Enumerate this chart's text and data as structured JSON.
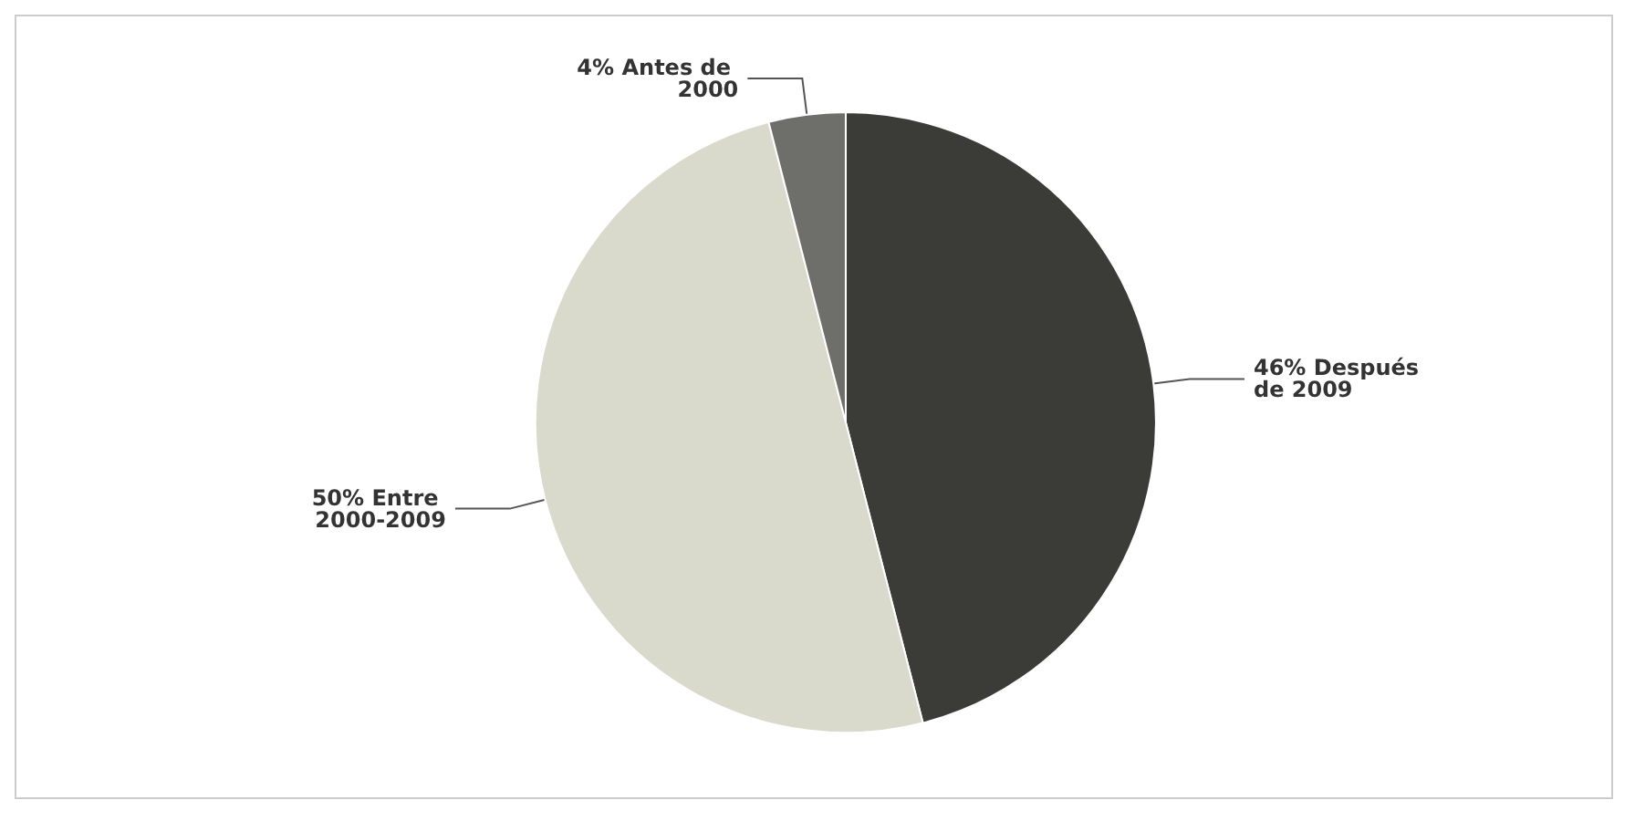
{
  "chart_data": {
    "type": "pie",
    "categories": [
      "Después de 2009",
      "Entre 2000-2009",
      "Antes de 2000"
    ],
    "values": [
      46,
      50,
      4
    ],
    "value_labels": [
      "46%",
      "50%",
      "4%"
    ],
    "colors": [
      "#3b3b38",
      "#d9d9cc",
      "#6e6e6a"
    ],
    "legend": false
  }
}
